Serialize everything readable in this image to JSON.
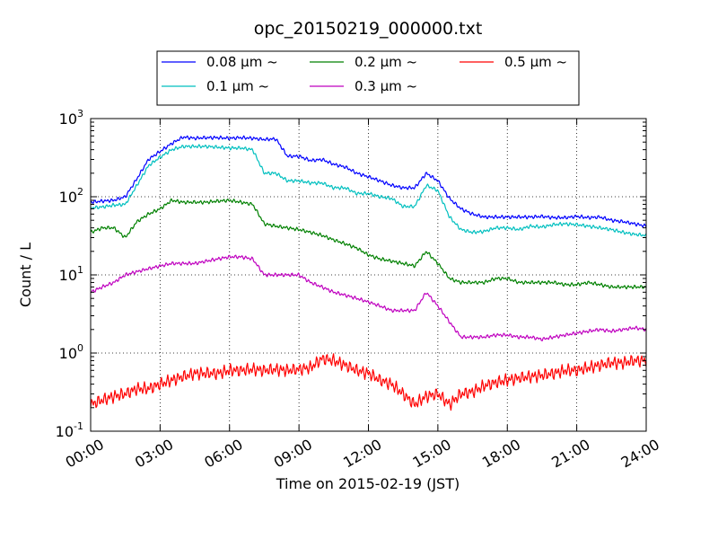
{
  "chart_data": {
    "type": "line",
    "title": "opc_20150219_000000.txt",
    "xlabel": "Time on 2015-02-19 (JST)",
    "ylabel": "Count / L",
    "yscale": "log",
    "ylim": [
      0.1,
      1000
    ],
    "xlim": [
      "2015-02-19 00:00",
      "2015-02-20 00:00"
    ],
    "xticks": [
      "00:00",
      "03:00",
      "06:00",
      "09:00",
      "12:00",
      "15:00",
      "18:00",
      "21:00",
      "24:00"
    ],
    "yticks": [
      {
        "base": "10",
        "exp": "-1"
      },
      {
        "base": "10",
        "exp": "0"
      },
      {
        "base": "10",
        "exp": "1"
      },
      {
        "base": "10",
        "exp": "2"
      },
      {
        "base": "10",
        "exp": "3"
      }
    ],
    "grid": true,
    "legend_position": "top-center (above plot)",
    "x": [
      "00:00",
      "00:30",
      "01:00",
      "01:30",
      "02:00",
      "02:30",
      "03:00",
      "03:30",
      "04:00",
      "04:30",
      "05:00",
      "05:30",
      "06:00",
      "06:30",
      "07:00",
      "07:30",
      "08:00",
      "08:30",
      "09:00",
      "09:30",
      "10:00",
      "10:30",
      "11:00",
      "11:30",
      "12:00",
      "12:30",
      "13:00",
      "13:30",
      "14:00",
      "14:30",
      "15:00",
      "15:30",
      "16:00",
      "16:30",
      "17:00",
      "17:30",
      "18:00",
      "18:30",
      "19:00",
      "19:30",
      "20:00",
      "20:30",
      "21:00",
      "21:30",
      "22:00",
      "22:30",
      "23:00",
      "23:30",
      "24:00"
    ],
    "series": [
      {
        "name": "0.08 μm ~",
        "color": "#0000ff",
        "values": [
          85,
          88,
          90,
          100,
          170,
          300,
          380,
          480,
          580,
          560,
          570,
          570,
          560,
          570,
          560,
          540,
          550,
          330,
          330,
          290,
          300,
          260,
          240,
          200,
          180,
          160,
          140,
          130,
          130,
          200,
          160,
          95,
          70,
          60,
          55,
          55,
          55,
          55,
          55,
          56,
          54,
          54,
          56,
          54,
          55,
          50,
          48,
          45,
          42
        ]
      },
      {
        "name": "0.1 μm ~",
        "color": "#00bfbf",
        "values": [
          72,
          74,
          78,
          80,
          140,
          250,
          320,
          400,
          440,
          440,
          440,
          430,
          420,
          420,
          400,
          200,
          200,
          160,
          160,
          150,
          150,
          130,
          130,
          110,
          110,
          100,
          95,
          75,
          75,
          140,
          120,
          55,
          38,
          35,
          36,
          40,
          40,
          38,
          42,
          41,
          44,
          45,
          44,
          42,
          40,
          38,
          35,
          33,
          32
        ]
      },
      {
        "name": "0.2 μm ~",
        "color": "#008000",
        "values": [
          35,
          40,
          40,
          30,
          48,
          60,
          70,
          90,
          85,
          85,
          85,
          88,
          90,
          85,
          80,
          45,
          42,
          40,
          38,
          35,
          32,
          28,
          25,
          22,
          18,
          16,
          15,
          14,
          13,
          20,
          14,
          9,
          8,
          8,
          8,
          9,
          9,
          8,
          8,
          8,
          8,
          7.5,
          7.5,
          8,
          7.5,
          7,
          7,
          7,
          7
        ]
      },
      {
        "name": "0.3 μm ~",
        "color": "#bf00bf",
        "values": [
          6,
          7,
          8,
          10,
          11,
          12,
          13,
          14,
          14,
          14,
          15,
          16,
          17,
          17,
          16,
          10,
          10,
          10,
          10,
          8,
          7,
          6,
          5.5,
          5,
          4.5,
          4,
          3.5,
          3.5,
          3.5,
          6,
          4,
          2.5,
          1.6,
          1.6,
          1.6,
          1.7,
          1.7,
          1.6,
          1.6,
          1.5,
          1.6,
          1.7,
          1.8,
          1.9,
          2,
          1.9,
          2,
          2.1,
          2
        ]
      },
      {
        "name": "0.5 μm ~",
        "color": "#ff0000",
        "values": [
          0.22,
          0.25,
          0.28,
          0.3,
          0.35,
          0.35,
          0.4,
          0.45,
          0.5,
          0.55,
          0.55,
          0.55,
          0.6,
          0.6,
          0.62,
          0.6,
          0.62,
          0.6,
          0.62,
          0.65,
          0.85,
          0.8,
          0.7,
          0.6,
          0.55,
          0.45,
          0.4,
          0.3,
          0.22,
          0.28,
          0.3,
          0.22,
          0.3,
          0.32,
          0.38,
          0.42,
          0.45,
          0.48,
          0.5,
          0.52,
          0.55,
          0.6,
          0.6,
          0.65,
          0.7,
          0.75,
          0.75,
          0.8,
          0.8
        ]
      }
    ]
  }
}
